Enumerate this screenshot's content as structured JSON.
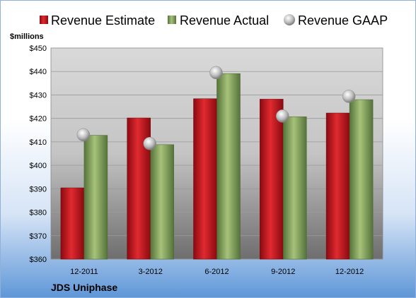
{
  "chart_data": {
    "type": "bar",
    "title": "",
    "ylabel": "$millions",
    "xlabel": "",
    "company": "JDS Uniphase",
    "categories": [
      "12-2011",
      "3-2012",
      "6-2012",
      "9-2012",
      "12-2012"
    ],
    "ylim": [
      360,
      450
    ],
    "yticks": [
      360,
      370,
      380,
      390,
      400,
      410,
      420,
      430,
      440,
      450
    ],
    "ytick_labels": [
      "$360",
      "$370",
      "$380",
      "$390",
      "$400",
      "$410",
      "$420",
      "$430",
      "$440",
      "$450"
    ],
    "grid": true,
    "legend_position": "top",
    "series": [
      {
        "name": "Revenue Estimate",
        "kind": "bar",
        "color": "#c8101a",
        "values": [
          390.4,
          420.2,
          428.4,
          428.2,
          422.3
        ]
      },
      {
        "name": "Revenue Actual",
        "kind": "bar",
        "color": "#86a55a",
        "values": [
          412.8,
          408.8,
          439.1,
          420.7,
          428.0
        ]
      },
      {
        "name": "Revenue GAAP",
        "kind": "marker",
        "color": "#b8b8b8",
        "values": [
          413.0,
          409.3,
          439.5,
          421.0,
          429.4
        ]
      }
    ]
  }
}
